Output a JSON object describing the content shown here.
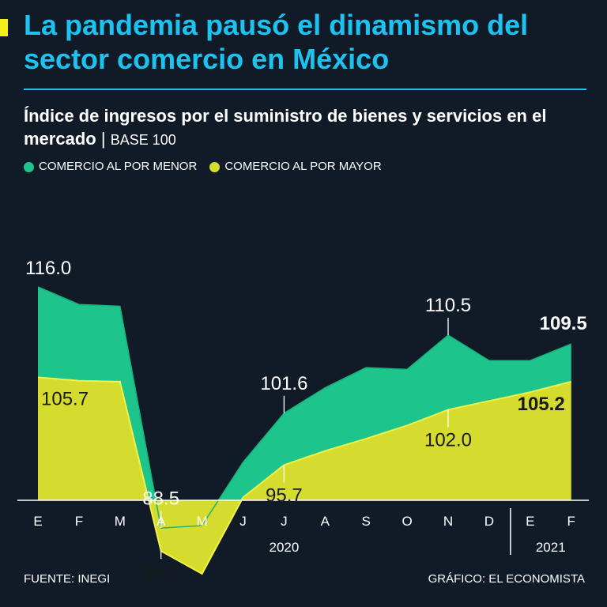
{
  "header": {
    "title": "La pandemia pausó el dinamismo del sector comercio en México",
    "subtitle_main": "Índice de ingresos por el suministro de bienes y servicios en el mercado",
    "subtitle_separator": "|",
    "subtitle_base": "BASE 100"
  },
  "colors": {
    "accent": "#f2ef1a",
    "title": "#1cc3f0",
    "menor": "#1dc58c",
    "mayor": "#d5dc2e",
    "background": "#111b27"
  },
  "legend": {
    "menor_label": "COMERCIO AL POR MENOR",
    "mayor_label": "COMERCIO AL POR MAYOR"
  },
  "chart_data": {
    "type": "area",
    "title": "Índice de ingresos por el suministro de bienes y servicios en el mercado",
    "ylabel": "BASE 100",
    "categories": [
      "E",
      "F",
      "M",
      "A",
      "M",
      "J",
      "J",
      "A",
      "S",
      "O",
      "N",
      "D",
      "E",
      "F"
    ],
    "years": [
      "2020",
      "2021"
    ],
    "ylim": [
      70,
      120
    ],
    "series": [
      {
        "name": "COMERCIO AL POR MENOR",
        "values": [
          116.0,
          114.0,
          113.8,
          88.5,
          88.8,
          96.0,
          101.6,
          104.5,
          106.8,
          106.6,
          110.5,
          107.6,
          107.6,
          109.5
        ]
      },
      {
        "name": "COMERCIO AL POR MAYOR",
        "values": [
          105.7,
          105.3,
          105.2,
          85.9,
          83.3,
          92.0,
          95.7,
          97.3,
          98.7,
          100.2,
          102.0,
          103.0,
          104.0,
          105.2
        ]
      }
    ],
    "data_labels": [
      {
        "series": 0,
        "index": 0,
        "text": "116.0",
        "bold": false
      },
      {
        "series": 0,
        "index": 3,
        "text": "88.5",
        "bold": false
      },
      {
        "series": 0,
        "index": 6,
        "text": "101.6",
        "bold": false
      },
      {
        "series": 0,
        "index": 10,
        "text": "110.5",
        "bold": false
      },
      {
        "series": 0,
        "index": 13,
        "text": "109.5",
        "bold": true
      },
      {
        "series": 1,
        "index": 0,
        "text": "105.7",
        "bold": false
      },
      {
        "series": 1,
        "index": 3,
        "text": "85.9",
        "bold": false
      },
      {
        "series": 1,
        "index": 6,
        "text": "95.7",
        "bold": false
      },
      {
        "series": 1,
        "index": 10,
        "text": "102.0",
        "bold": false
      },
      {
        "series": 1,
        "index": 13,
        "text": "105.2",
        "bold": true
      }
    ]
  },
  "footer": {
    "source": "FUENTE: INEGI",
    "credit": "GRÁFICO: EL ECONOMISTA"
  }
}
